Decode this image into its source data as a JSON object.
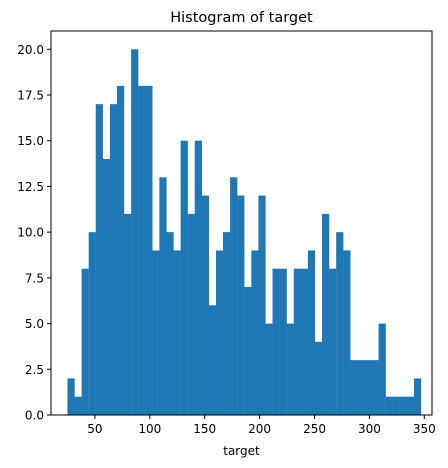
{
  "chart_data": {
    "type": "bar",
    "title": "Histogram of target",
    "xlabel": "target",
    "ylabel": "",
    "xlim": [
      10.0,
      357.0
    ],
    "ylim": [
      0,
      21
    ],
    "x_ticks": [
      50,
      100,
      150,
      200,
      250,
      300,
      350
    ],
    "y_ticks": [
      0.0,
      2.5,
      5.0,
      7.5,
      10.0,
      12.5,
      15.0,
      17.5,
      20.0
    ],
    "bin_start": 25,
    "bin_width": 6.44,
    "color": "#1f77b4",
    "values": [
      2,
      1,
      8,
      10,
      17,
      14,
      17,
      18,
      11,
      20,
      18,
      18,
      9,
      13,
      10,
      9,
      15,
      11,
      15,
      12,
      6,
      9,
      10,
      13,
      12,
      7,
      9,
      12,
      5,
      8,
      8,
      5,
      8,
      8,
      9,
      4,
      11,
      8,
      10,
      9,
      3,
      3,
      3,
      3,
      5,
      1,
      1,
      1,
      1,
      2
    ]
  }
}
